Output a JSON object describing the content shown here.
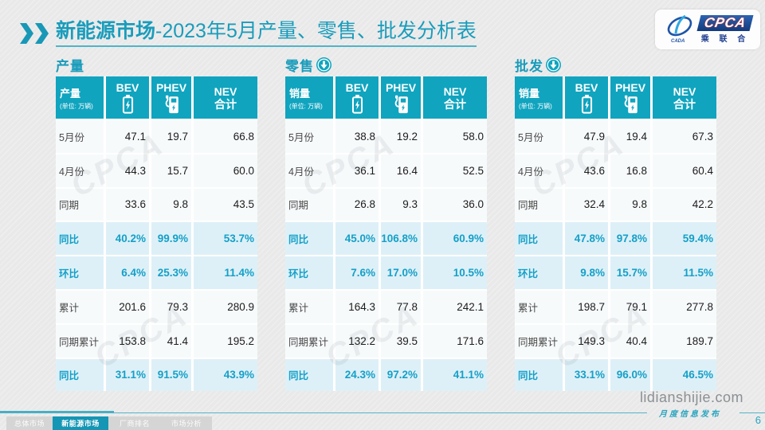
{
  "title": {
    "highlight": "新能源市场",
    "rest": "-2023年5月产量、零售、批发分析表"
  },
  "logo": {
    "cpca": "CPCA",
    "sub": "乘 联 合",
    "emblem": "CADA"
  },
  "watermark": "CPCA",
  "tables": [
    {
      "section": "产量",
      "has_arrow": false,
      "unit_label": "产量",
      "unit_sub": "(单位: 万辆)",
      "col_bev": "BEV",
      "col_phev": "PHEV",
      "col_nev1": "NEV",
      "col_nev2": "合计",
      "rows": [
        {
          "label": "5月份",
          "values": [
            "47.1",
            "19.7",
            "66.8"
          ],
          "highlight": false
        },
        {
          "label": "4月份",
          "values": [
            "44.3",
            "15.7",
            "60.0"
          ],
          "highlight": false
        },
        {
          "label": "同期",
          "values": [
            "33.6",
            "9.8",
            "43.5"
          ],
          "highlight": false
        },
        {
          "label": "同比",
          "values": [
            "40.2%",
            "99.9%",
            "53.7%"
          ],
          "highlight": true
        },
        {
          "label": "环比",
          "values": [
            "6.4%",
            "25.3%",
            "11.4%"
          ],
          "highlight": true
        },
        {
          "label": "累计",
          "values": [
            "201.6",
            "79.3",
            "280.9"
          ],
          "highlight": false
        },
        {
          "label": "同期累计",
          "values": [
            "153.8",
            "41.4",
            "195.2"
          ],
          "highlight": false
        },
        {
          "label": "同比",
          "values": [
            "31.1%",
            "91.5%",
            "43.9%"
          ],
          "highlight": true
        }
      ]
    },
    {
      "section": "零售",
      "has_arrow": true,
      "unit_label": "销量",
      "unit_sub": "(单位: 万辆)",
      "col_bev": "BEV",
      "col_phev": "PHEV",
      "col_nev1": "NEV",
      "col_nev2": "合计",
      "rows": [
        {
          "label": "5月份",
          "values": [
            "38.8",
            "19.2",
            "58.0"
          ],
          "highlight": false
        },
        {
          "label": "4月份",
          "values": [
            "36.1",
            "16.4",
            "52.5"
          ],
          "highlight": false
        },
        {
          "label": "同期",
          "values": [
            "26.8",
            "9.3",
            "36.0"
          ],
          "highlight": false
        },
        {
          "label": "同比",
          "values": [
            "45.0%",
            "106.8%",
            "60.9%"
          ],
          "highlight": true
        },
        {
          "label": "环比",
          "values": [
            "7.6%",
            "17.0%",
            "10.5%"
          ],
          "highlight": true
        },
        {
          "label": "累计",
          "values": [
            "164.3",
            "77.8",
            "242.1"
          ],
          "highlight": false
        },
        {
          "label": "同期累计",
          "values": [
            "132.2",
            "39.5",
            "171.6"
          ],
          "highlight": false
        },
        {
          "label": "同比",
          "values": [
            "24.3%",
            "97.2%",
            "41.1%"
          ],
          "highlight": true
        }
      ]
    },
    {
      "section": "批发",
      "has_arrow": true,
      "unit_label": "销量",
      "unit_sub": "(单位: 万辆)",
      "col_bev": "BEV",
      "col_phev": "PHEV",
      "col_nev1": "NEV",
      "col_nev2": "合计",
      "rows": [
        {
          "label": "5月份",
          "values": [
            "47.9",
            "19.4",
            "67.3"
          ],
          "highlight": false
        },
        {
          "label": "4月份",
          "values": [
            "43.6",
            "16.8",
            "60.4"
          ],
          "highlight": false
        },
        {
          "label": "同期",
          "values": [
            "32.4",
            "9.8",
            "42.2"
          ],
          "highlight": false
        },
        {
          "label": "同比",
          "values": [
            "47.8%",
            "97.8%",
            "59.4%"
          ],
          "highlight": true
        },
        {
          "label": "环比",
          "values": [
            "9.8%",
            "15.7%",
            "11.5%"
          ],
          "highlight": true
        },
        {
          "label": "累计",
          "values": [
            "198.7",
            "79.1",
            "277.8"
          ],
          "highlight": false
        },
        {
          "label": "同期累计",
          "values": [
            "149.3",
            "40.4",
            "189.7"
          ],
          "highlight": false
        },
        {
          "label": "同比",
          "values": [
            "33.1%",
            "96.0%",
            "46.5%"
          ],
          "highlight": true
        }
      ]
    }
  ],
  "footer": {
    "site": "lidianshijie.com",
    "site_sub": "月度信息发布",
    "page": "6",
    "tabs": [
      {
        "label": "总体市场",
        "active": false
      },
      {
        "label": "新能源市场",
        "active": true
      },
      {
        "label": "厂商排名",
        "active": false
      },
      {
        "label": "市场分析",
        "active": false
      }
    ]
  }
}
